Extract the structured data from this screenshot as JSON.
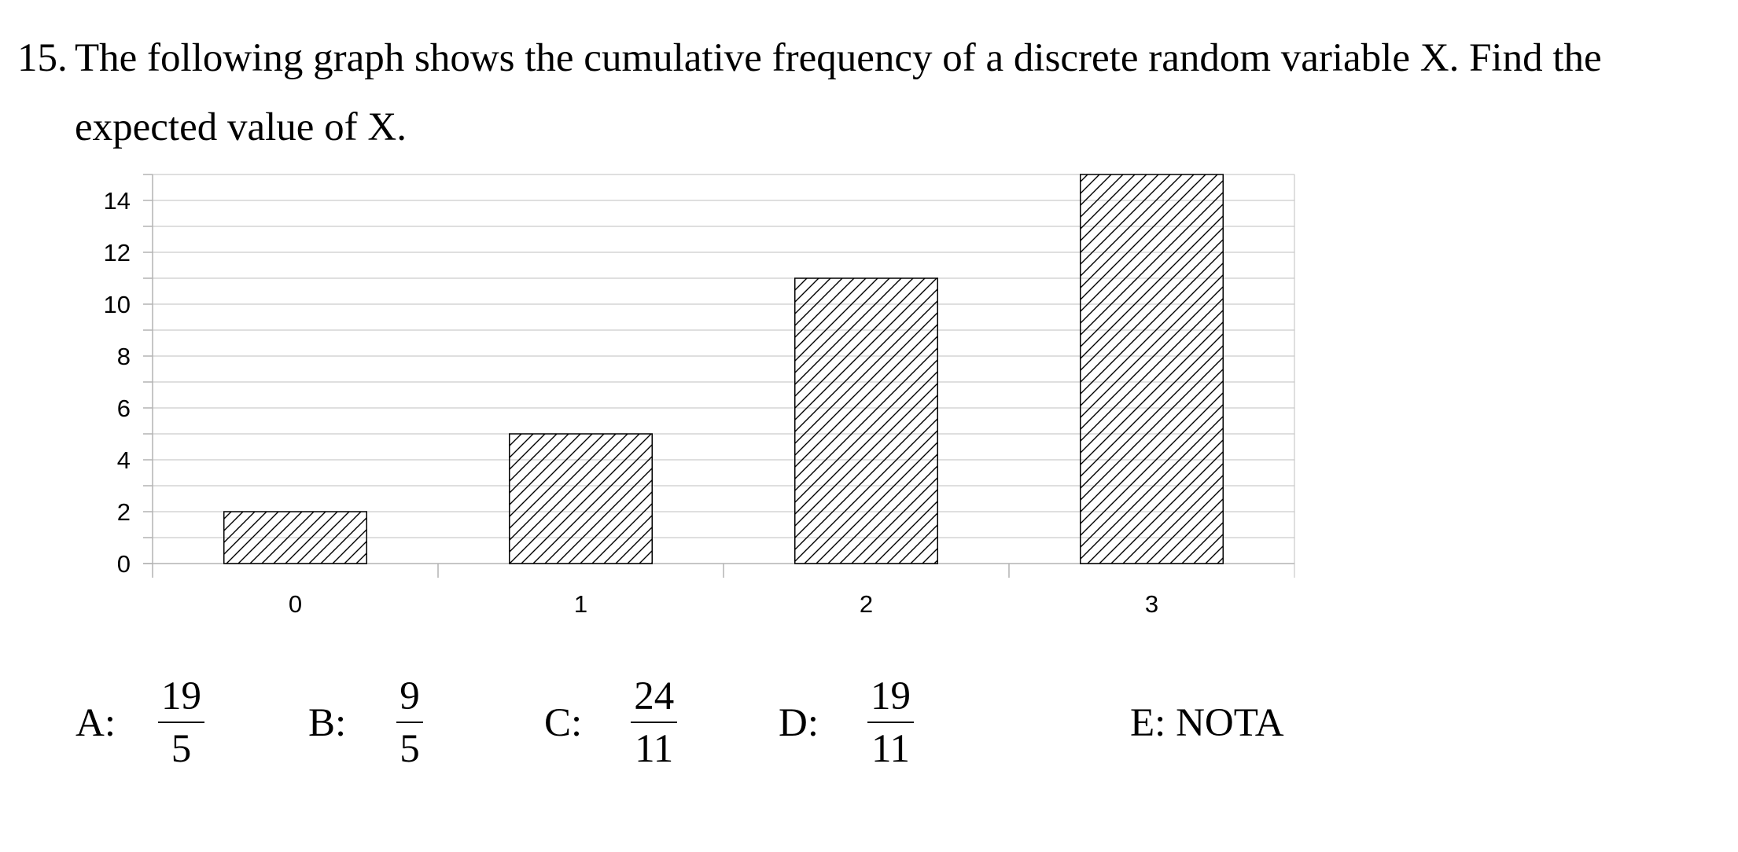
{
  "question": {
    "number": "15.",
    "line1": "The following graph shows the cumulative frequency of a discrete random variable X. Find the",
    "line2": "expected value of X."
  },
  "chart_data": {
    "type": "bar",
    "categories": [
      "0",
      "1",
      "2",
      "3"
    ],
    "values": [
      2,
      5,
      11,
      15
    ],
    "title": "",
    "xlabel": "",
    "ylabel": "",
    "ylim": [
      0,
      15
    ],
    "yticks": [
      0,
      2,
      4,
      6,
      8,
      10,
      12,
      14
    ],
    "grid": true,
    "legend": "none",
    "bar_fill": "diagonal-hatch",
    "colors": {
      "bar_stroke": "#000000",
      "gridline": "#bfbfbf",
      "axis": "#b3b3b3"
    }
  },
  "answers": [
    {
      "letter": "A:",
      "numerator": "19",
      "denominator": "5"
    },
    {
      "letter": "B:",
      "numerator": "9",
      "denominator": "5"
    },
    {
      "letter": "C:",
      "numerator": "24",
      "denominator": "11"
    },
    {
      "letter": "D:",
      "numerator": "19",
      "denominator": "11"
    },
    {
      "letter": "E: NOTA"
    }
  ]
}
